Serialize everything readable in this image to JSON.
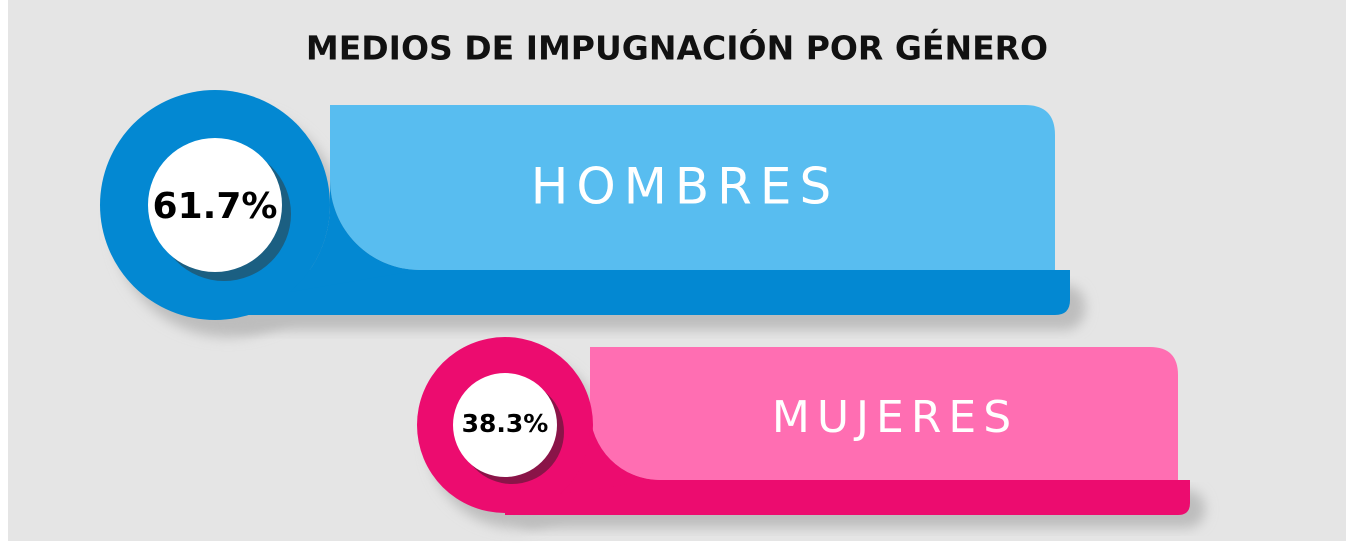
{
  "title": "MEDIOS DE IMPUGNACIÓN POR GÉNERO",
  "items": [
    {
      "label": "HOMBRES",
      "percent": "61.7%"
    },
    {
      "label": "MUJERES",
      "percent": "38.3%"
    }
  ]
}
